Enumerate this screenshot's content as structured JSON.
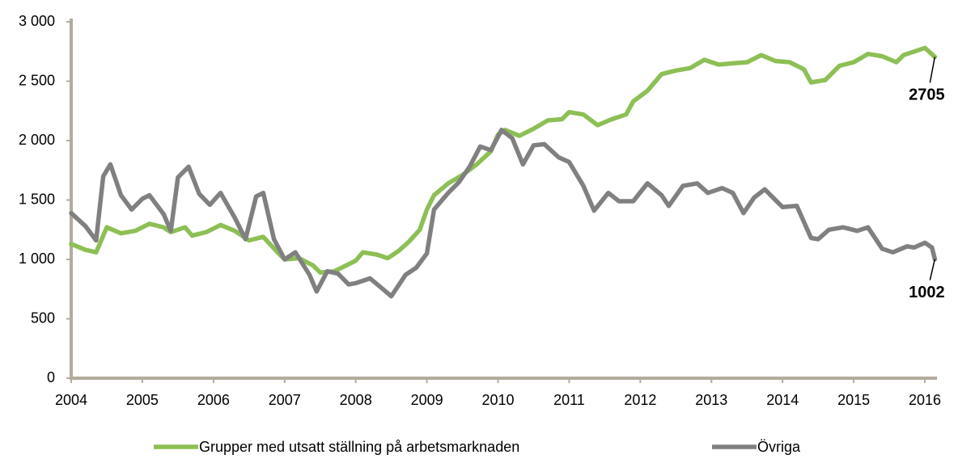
{
  "chart_data": {
    "type": "line",
    "xlim": [
      2004,
      2016.17
    ],
    "xticks": [
      2004,
      2005,
      2006,
      2007,
      2008,
      2009,
      2010,
      2011,
      2012,
      2013,
      2014,
      2015,
      2016
    ],
    "ylim": [
      0,
      3000
    ],
    "yticks": [
      {
        "value": 0,
        "label": "0"
      },
      {
        "value": 500,
        "label": "500"
      },
      {
        "value": 1000,
        "label": "1 000"
      },
      {
        "value": 1500,
        "label": "1 500"
      },
      {
        "value": 2000,
        "label": "2 000"
      },
      {
        "value": 2500,
        "label": "2 500"
      },
      {
        "value": 3000,
        "label": "3 000"
      }
    ],
    "grid": false,
    "legend": "bottom",
    "series": [
      {
        "name": "Grupper med utsatt ställning på arbetsmarknaden",
        "color": "#8dbf55",
        "x": [
          2004.0,
          2004.2,
          2004.35,
          2004.5,
          2004.7,
          2004.9,
          2005.1,
          2005.3,
          2005.4,
          2005.6,
          2005.7,
          2005.9,
          2006.1,
          2006.3,
          2006.5,
          2006.7,
          2006.9,
          2007.0,
          2007.2,
          2007.4,
          2007.5,
          2007.7,
          2007.9,
          2008.0,
          2008.1,
          2008.3,
          2008.45,
          2008.6,
          2008.75,
          2008.9,
          2009.0,
          2009.1,
          2009.3,
          2009.5,
          2009.7,
          2009.9,
          2010.0,
          2010.1,
          2010.3,
          2010.5,
          2010.7,
          2010.9,
          2011.0,
          2011.2,
          2011.4,
          2011.6,
          2011.8,
          2011.9,
          2012.1,
          2012.3,
          2012.5,
          2012.7,
          2012.9,
          2013.1,
          2013.3,
          2013.5,
          2013.7,
          2013.9,
          2014.1,
          2014.3,
          2014.4,
          2014.6,
          2014.8,
          2015.0,
          2015.2,
          2015.4,
          2015.6,
          2015.7,
          2015.9,
          2016.0,
          2016.14
        ],
        "values": [
          1130,
          1080,
          1060,
          1270,
          1220,
          1240,
          1300,
          1270,
          1230,
          1270,
          1200,
          1230,
          1290,
          1240,
          1160,
          1190,
          1060,
          1000,
          1010,
          950,
          890,
          900,
          960,
          990,
          1060,
          1040,
          1010,
          1070,
          1150,
          1250,
          1420,
          1540,
          1640,
          1710,
          1800,
          1910,
          2050,
          2090,
          2040,
          2100,
          2170,
          2180,
          2240,
          2220,
          2130,
          2180,
          2220,
          2330,
          2420,
          2560,
          2590,
          2610,
          2680,
          2640,
          2650,
          2660,
          2720,
          2670,
          2660,
          2600,
          2490,
          2510,
          2630,
          2660,
          2730,
          2710,
          2660,
          2720,
          2760,
          2780,
          2705
        ]
      },
      {
        "name": "Övriga",
        "color": "#808080",
        "x": [
          2004.0,
          2004.2,
          2004.35,
          2004.45,
          2004.55,
          2004.7,
          2004.85,
          2005.0,
          2005.1,
          2005.3,
          2005.4,
          2005.5,
          2005.65,
          2005.8,
          2005.95,
          2006.1,
          2006.3,
          2006.45,
          2006.6,
          2006.7,
          2006.85,
          2007.0,
          2007.15,
          2007.35,
          2007.45,
          2007.6,
          2007.75,
          2007.9,
          2008.0,
          2008.2,
          2008.4,
          2008.5,
          2008.7,
          2008.85,
          2009.0,
          2009.1,
          2009.3,
          2009.45,
          2009.6,
          2009.75,
          2009.9,
          2010.05,
          2010.2,
          2010.35,
          2010.5,
          2010.65,
          2010.85,
          2011.0,
          2011.2,
          2011.35,
          2011.55,
          2011.7,
          2011.9,
          2012.1,
          2012.3,
          2012.4,
          2012.6,
          2012.8,
          2012.95,
          2013.15,
          2013.3,
          2013.45,
          2013.6,
          2013.75,
          2013.9,
          2014.0,
          2014.2,
          2014.4,
          2014.5,
          2014.65,
          2014.85,
          2015.05,
          2015.2,
          2015.4,
          2015.55,
          2015.75,
          2015.85,
          2016.0,
          2016.1,
          2016.14
        ],
        "values": [
          1390,
          1280,
          1160,
          1700,
          1800,
          1540,
          1420,
          1510,
          1540,
          1380,
          1240,
          1690,
          1780,
          1550,
          1460,
          1560,
          1350,
          1170,
          1530,
          1560,
          1170,
          1000,
          1060,
          870,
          730,
          900,
          880,
          790,
          800,
          840,
          740,
          690,
          870,
          930,
          1050,
          1420,
          1560,
          1650,
          1780,
          1950,
          1920,
          2090,
          2020,
          1800,
          1960,
          1970,
          1860,
          1820,
          1620,
          1410,
          1560,
          1490,
          1490,
          1640,
          1540,
          1450,
          1620,
          1640,
          1560,
          1600,
          1560,
          1390,
          1520,
          1590,
          1500,
          1440,
          1450,
          1180,
          1170,
          1250,
          1270,
          1240,
          1270,
          1090,
          1060,
          1110,
          1100,
          1140,
          1100,
          1002
        ]
      }
    ]
  }
}
